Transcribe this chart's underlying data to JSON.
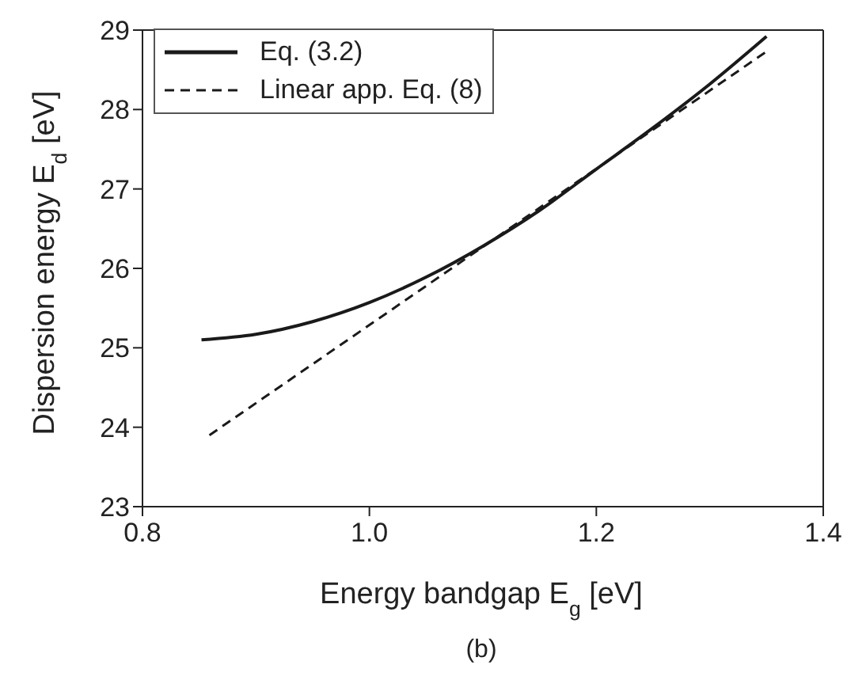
{
  "chart_data": {
    "type": "line",
    "xlabel": "Energy bandgap E$_{g}$ [eV]",
    "ylabel": "Dispersion energy E$_{d}$ [eV]",
    "annotations": [
      "(b)"
    ],
    "series": [
      {
        "name": "Eq. (3.2)",
        "color": "#1a1a1a",
        "line_style": "solid",
        "x": [
          0.852,
          0.9,
          0.95,
          1.0,
          1.05,
          1.1,
          1.15,
          1.2,
          1.25,
          1.3,
          1.35
        ],
        "values": [
          25.1,
          25.17,
          25.33,
          25.57,
          25.89,
          26.28,
          26.73,
          27.25,
          27.77,
          28.32,
          28.92
        ]
      },
      {
        "name": "Linear app. Eq. (8)",
        "color": "#1a1a1a",
        "line_style": "dashed",
        "x": [
          0.859,
          1.351
        ],
        "values": [
          23.9,
          28.74
        ]
      }
    ],
    "xlim": [
      0.8,
      1.4
    ],
    "xticks": [
      {
        "value": 0.8,
        "label": "0.8"
      },
      {
        "value": 1.0,
        "label": "1.0"
      },
      {
        "value": 1.2,
        "label": "1.2"
      },
      {
        "value": 1.4,
        "label": "1.4"
      }
    ],
    "ylim": [
      23,
      29
    ],
    "yticks": [
      23,
      24,
      25,
      26,
      27,
      28,
      29
    ],
    "legend": "top left",
    "marker": "none"
  }
}
